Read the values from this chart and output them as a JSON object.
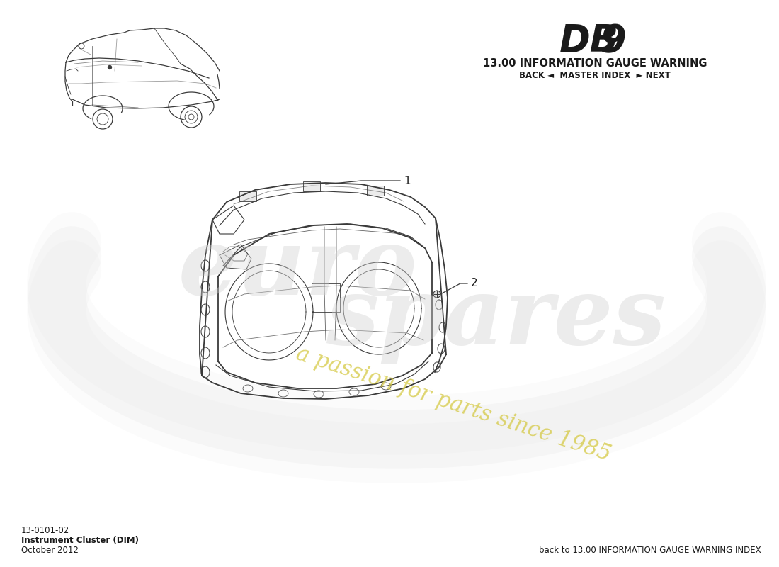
{
  "title_db9": "DB 9",
  "title_section": "13.00 INFORMATION GAUGE WARNING",
  "nav_text": "BACK ◄  MASTER INDEX  ► NEXT",
  "part_number": "13-0101-02",
  "part_name": "Instrument Cluster (DIM)",
  "date": "October 2012",
  "bottom_right": "back to 13.00 INFORMATION GAUGE WARNING INDEX",
  "callout_1": "1",
  "callout_2": "2",
  "bg_color": "#ffffff",
  "text_color": "#1a1a1a",
  "line_color": "#3a3a3a",
  "swirl_color": "#d8d8d8",
  "watermark_yellow": "#d4c840",
  "watermark_gray": "#c8c8c8"
}
